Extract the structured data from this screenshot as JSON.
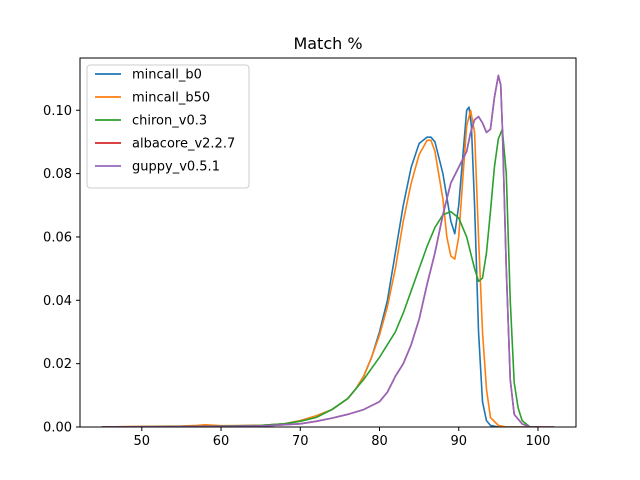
{
  "chart_data": {
    "type": "line",
    "title": "Match %",
    "xlabel": "",
    "ylabel": "",
    "xlim": [
      42.2,
      104.8
    ],
    "ylim": [
      0.0,
      0.1165
    ],
    "xticks": [
      50,
      60,
      70,
      80,
      90,
      100
    ],
    "yticks": [
      0.0,
      0.02,
      0.04,
      0.06,
      0.08,
      0.1
    ],
    "ytick_labels": [
      "0.00",
      "0.02",
      "0.04",
      "0.06",
      "0.08",
      "0.10"
    ],
    "grid": false,
    "legend_position": "top-left",
    "series": [
      {
        "name": "mincall_b0",
        "color": "#1f77b4",
        "points": [
          [
            45,
            0
          ],
          [
            55,
            0.0002
          ],
          [
            60,
            0.0003
          ],
          [
            65,
            0.0005
          ],
          [
            68,
            0.001
          ],
          [
            70,
            0.002
          ],
          [
            72,
            0.0035
          ],
          [
            74,
            0.0055
          ],
          [
            76,
            0.009
          ],
          [
            77,
            0.012
          ],
          [
            78,
            0.016
          ],
          [
            79,
            0.022
          ],
          [
            80,
            0.03
          ],
          [
            81,
            0.04
          ],
          [
            82,
            0.055
          ],
          [
            83,
            0.07
          ],
          [
            84,
            0.082
          ],
          [
            85,
            0.0895
          ],
          [
            86,
            0.0915
          ],
          [
            86.5,
            0.0915
          ],
          [
            87,
            0.09
          ],
          [
            88,
            0.08
          ],
          [
            89,
            0.065
          ],
          [
            89.5,
            0.061
          ],
          [
            90,
            0.07
          ],
          [
            90.5,
            0.085
          ],
          [
            91,
            0.1
          ],
          [
            91.3,
            0.101
          ],
          [
            91.6,
            0.095
          ],
          [
            92,
            0.07
          ],
          [
            92.5,
            0.03
          ],
          [
            93,
            0.008
          ],
          [
            93.5,
            0.002
          ],
          [
            94,
            0.0005
          ],
          [
            95,
            0
          ],
          [
            100,
            0
          ]
        ]
      },
      {
        "name": "mincall_b50",
        "color": "#ff7f0e",
        "points": [
          [
            45,
            0
          ],
          [
            50,
            0.0002
          ],
          [
            55,
            0.0003
          ],
          [
            57,
            0.0005
          ],
          [
            58,
            0.0007
          ],
          [
            60,
            0.0004
          ],
          [
            65,
            0.0005
          ],
          [
            68,
            0.001
          ],
          [
            70,
            0.002
          ],
          [
            72,
            0.0035
          ],
          [
            74,
            0.0055
          ],
          [
            76,
            0.009
          ],
          [
            77,
            0.012
          ],
          [
            78,
            0.016
          ],
          [
            79,
            0.022
          ],
          [
            80,
            0.029
          ],
          [
            81,
            0.038
          ],
          [
            82,
            0.05
          ],
          [
            83,
            0.065
          ],
          [
            84,
            0.077
          ],
          [
            85,
            0.086
          ],
          [
            86,
            0.0905
          ],
          [
            86.5,
            0.0905
          ],
          [
            87,
            0.087
          ],
          [
            88,
            0.072
          ],
          [
            88.5,
            0.06
          ],
          [
            89,
            0.054
          ],
          [
            89.5,
            0.053
          ],
          [
            90,
            0.06
          ],
          [
            90.5,
            0.078
          ],
          [
            91,
            0.095
          ],
          [
            91.5,
            0.1
          ],
          [
            92,
            0.093
          ],
          [
            92.5,
            0.06
          ],
          [
            93,
            0.03
          ],
          [
            93.5,
            0.012
          ],
          [
            94,
            0.003
          ],
          [
            95,
            0.0005
          ],
          [
            96,
            0
          ],
          [
            100,
            0
          ]
        ]
      },
      {
        "name": "chiron_v0.3",
        "color": "#2ca02c",
        "points": [
          [
            45,
            0
          ],
          [
            55,
            0.0002
          ],
          [
            60,
            0.0003
          ],
          [
            65,
            0.0005
          ],
          [
            68,
            0.001
          ],
          [
            70,
            0.0018
          ],
          [
            72,
            0.003
          ],
          [
            74,
            0.0055
          ],
          [
            76,
            0.009
          ],
          [
            78,
            0.015
          ],
          [
            80,
            0.022
          ],
          [
            82,
            0.03
          ],
          [
            83,
            0.036
          ],
          [
            84,
            0.043
          ],
          [
            85,
            0.05
          ],
          [
            86,
            0.057
          ],
          [
            87,
            0.063
          ],
          [
            88,
            0.067
          ],
          [
            89,
            0.068
          ],
          [
            90,
            0.066
          ],
          [
            91,
            0.06
          ],
          [
            92,
            0.05
          ],
          [
            92.5,
            0.046
          ],
          [
            93,
            0.047
          ],
          [
            93.5,
            0.055
          ],
          [
            94,
            0.068
          ],
          [
            94.5,
            0.082
          ],
          [
            95,
            0.091
          ],
          [
            95.5,
            0.094
          ],
          [
            96,
            0.08
          ],
          [
            96.5,
            0.04
          ],
          [
            97,
            0.014
          ],
          [
            97.5,
            0.006
          ],
          [
            98,
            0.002
          ],
          [
            99,
            0
          ],
          [
            100,
            0
          ]
        ]
      },
      {
        "name": "albacore_v2.2.7",
        "color": "#d62728",
        "points": [
          [
            45,
            0
          ],
          [
            55,
            0.0001
          ],
          [
            60,
            0.0002
          ],
          [
            65,
            0.0003
          ],
          [
            70,
            0.001
          ],
          [
            72,
            0.0018
          ],
          [
            74,
            0.0028
          ],
          [
            76,
            0.004
          ],
          [
            78,
            0.0055
          ],
          [
            80,
            0.008
          ],
          [
            81,
            0.011
          ],
          [
            82,
            0.016
          ],
          [
            83,
            0.02
          ],
          [
            84,
            0.026
          ],
          [
            85,
            0.034
          ],
          [
            86,
            0.045
          ],
          [
            87,
            0.055
          ],
          [
            88,
            0.067
          ],
          [
            89,
            0.077
          ],
          [
            90,
            0.082
          ],
          [
            91,
            0.087
          ],
          [
            91.5,
            0.093
          ],
          [
            92,
            0.097
          ],
          [
            92.5,
            0.098
          ],
          [
            93,
            0.096
          ],
          [
            93.5,
            0.093
          ],
          [
            94,
            0.094
          ],
          [
            94.5,
            0.104
          ],
          [
            95,
            0.111
          ],
          [
            95.3,
            0.108
          ],
          [
            95.5,
            0.095
          ],
          [
            96,
            0.05
          ],
          [
            96.5,
            0.015
          ],
          [
            97,
            0.004
          ],
          [
            98,
            0.001
          ],
          [
            99,
            0
          ],
          [
            102,
            0
          ]
        ]
      },
      {
        "name": "guppy_v0.5.1",
        "color": "#9467bd",
        "points": [
          [
            45,
            0
          ],
          [
            55,
            0.0001
          ],
          [
            60,
            0.0002
          ],
          [
            65,
            0.0003
          ],
          [
            70,
            0.001
          ],
          [
            72,
            0.0018
          ],
          [
            74,
            0.0028
          ],
          [
            76,
            0.004
          ],
          [
            78,
            0.0055
          ],
          [
            80,
            0.008
          ],
          [
            81,
            0.011
          ],
          [
            82,
            0.016
          ],
          [
            83,
            0.02
          ],
          [
            84,
            0.026
          ],
          [
            85,
            0.034
          ],
          [
            86,
            0.045
          ],
          [
            87,
            0.055
          ],
          [
            88,
            0.067
          ],
          [
            89,
            0.077
          ],
          [
            90,
            0.082
          ],
          [
            91,
            0.087
          ],
          [
            91.5,
            0.093
          ],
          [
            92,
            0.097
          ],
          [
            92.5,
            0.098
          ],
          [
            93,
            0.096
          ],
          [
            93.5,
            0.093
          ],
          [
            94,
            0.094
          ],
          [
            94.5,
            0.104
          ],
          [
            95,
            0.111
          ],
          [
            95.3,
            0.108
          ],
          [
            95.5,
            0.095
          ],
          [
            96,
            0.05
          ],
          [
            96.5,
            0.015
          ],
          [
            97,
            0.004
          ],
          [
            98,
            0.001
          ],
          [
            99,
            0
          ],
          [
            102,
            0
          ]
        ]
      }
    ]
  }
}
